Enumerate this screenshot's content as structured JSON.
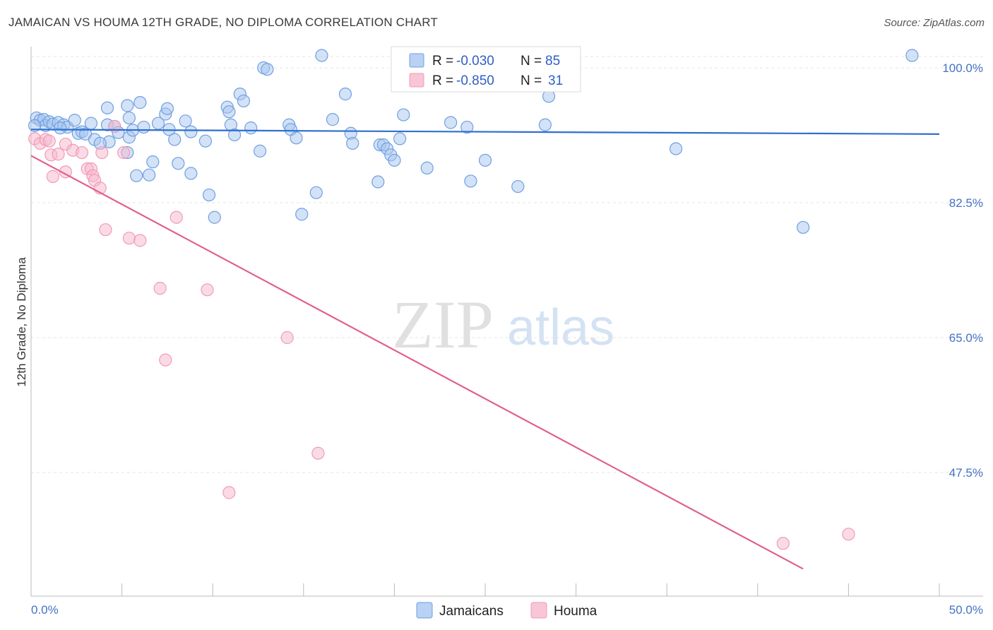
{
  "header": {
    "title": "JAMAICAN VS HOUMA 12TH GRADE, NO DIPLOMA CORRELATION CHART",
    "source": "Source: ZipAtlas.com"
  },
  "watermark": {
    "zip": "ZIP",
    "atlas": "atlas"
  },
  "legend": {
    "r_label": "R =",
    "n_label": "N =",
    "rows": [
      {
        "series": "Jamaicans",
        "r": "-0.030",
        "n": "85",
        "color": "#a8c6ef"
      },
      {
        "series": "Houma",
        "r": "-0.850",
        "n": "31",
        "color": "#f6b8cb"
      }
    ]
  },
  "bottom_legend": [
    "Jamaicans",
    "Houma"
  ],
  "chart_data": {
    "type": "scatter",
    "title": "JAMAICAN VS HOUMA 12TH GRADE, NO DIPLOMA CORRELATION CHART",
    "xlabel": "",
    "ylabel": "12th Grade, No Diploma",
    "xlim": [
      0,
      50
    ],
    "ylim": [
      35,
      102
    ],
    "x_tick_labels": [
      "0.0%",
      "50.0%"
    ],
    "y_ticks": [
      100,
      82.5,
      65,
      47.5
    ],
    "y_tick_labels": [
      "100.0%",
      "82.5%",
      "65.0%",
      "47.5%"
    ],
    "grid": true,
    "legend_position": "top-center",
    "series": [
      {
        "name": "Jamaicans",
        "color": "#6fa0e0",
        "trend": {
          "x": [
            0,
            50
          ],
          "y": [
            92.0,
            91.4
          ]
        },
        "points": [
          [
            0.3,
            93.5
          ],
          [
            0.5,
            93.2
          ],
          [
            0.7,
            93.3
          ],
          [
            0.8,
            92.5
          ],
          [
            1.0,
            93.0
          ],
          [
            1.2,
            92.7
          ],
          [
            1.5,
            92.9
          ],
          [
            1.8,
            92.6
          ],
          [
            2.0,
            92.3
          ],
          [
            2.4,
            93.2
          ],
          [
            2.6,
            91.5
          ],
          [
            2.8,
            91.7
          ],
          [
            3.0,
            91.4
          ],
          [
            3.3,
            92.8
          ],
          [
            3.5,
            90.7
          ],
          [
            4.2,
            94.8
          ],
          [
            4.2,
            92.6
          ],
          [
            4.3,
            90.4
          ],
          [
            4.6,
            92.4
          ],
          [
            4.8,
            91.6
          ],
          [
            5.3,
            89.0
          ],
          [
            5.4,
            91.0
          ],
          [
            5.6,
            91.9
          ],
          [
            5.3,
            95.1
          ],
          [
            5.4,
            93.5
          ],
          [
            5.8,
            86.0
          ],
          [
            6.0,
            95.5
          ],
          [
            6.2,
            92.3
          ],
          [
            6.5,
            86.1
          ],
          [
            6.7,
            87.8
          ],
          [
            7.0,
            92.8
          ],
          [
            7.4,
            94.0
          ],
          [
            7.5,
            94.7
          ],
          [
            7.6,
            92.0
          ],
          [
            7.9,
            90.7
          ],
          [
            8.1,
            87.6
          ],
          [
            8.5,
            93.1
          ],
          [
            8.8,
            91.7
          ],
          [
            8.8,
            86.3
          ],
          [
            9.6,
            90.5
          ],
          [
            9.8,
            83.5
          ],
          [
            10.1,
            80.6
          ],
          [
            10.8,
            94.9
          ],
          [
            10.9,
            94.3
          ],
          [
            11.0,
            92.6
          ],
          [
            11.2,
            91.3
          ],
          [
            11.5,
            96.6
          ],
          [
            11.7,
            95.7
          ],
          [
            12.1,
            92.2
          ],
          [
            12.6,
            89.2
          ],
          [
            12.8,
            100.0
          ],
          [
            13.0,
            99.8
          ],
          [
            14.2,
            92.6
          ],
          [
            14.3,
            92.0
          ],
          [
            14.6,
            90.9
          ],
          [
            14.9,
            81.0
          ],
          [
            15.7,
            83.8
          ],
          [
            16.0,
            101.6
          ],
          [
            16.6,
            93.3
          ],
          [
            17.3,
            96.6
          ],
          [
            17.6,
            91.5
          ],
          [
            17.7,
            90.2
          ],
          [
            19.1,
            85.2
          ],
          [
            19.2,
            90.0
          ],
          [
            19.4,
            90.0
          ],
          [
            19.6,
            89.5
          ],
          [
            19.8,
            88.7
          ],
          [
            20.0,
            88.0
          ],
          [
            20.3,
            90.8
          ],
          [
            20.5,
            93.9
          ],
          [
            21.8,
            87.0
          ],
          [
            23.1,
            92.9
          ],
          [
            24.0,
            92.3
          ],
          [
            25.0,
            88.0
          ],
          [
            26.8,
            84.6
          ],
          [
            27.0,
            101.6
          ],
          [
            28.3,
            92.6
          ],
          [
            28.5,
            96.3
          ],
          [
            35.5,
            89.5
          ],
          [
            42.5,
            79.3
          ],
          [
            48.5,
            101.6
          ],
          [
            0.2,
            92.5
          ],
          [
            1.6,
            92.2
          ],
          [
            3.8,
            90.2
          ],
          [
            24.2,
            85.3
          ]
        ]
      },
      {
        "name": "Houma",
        "color": "#f29ab6",
        "trend": {
          "x": [
            0,
            42.5
          ],
          "y": [
            88.6,
            35.0
          ]
        },
        "points": [
          [
            0.2,
            90.8
          ],
          [
            0.5,
            90.2
          ],
          [
            0.8,
            90.7
          ],
          [
            1.0,
            90.5
          ],
          [
            1.1,
            88.7
          ],
          [
            1.2,
            85.9
          ],
          [
            1.5,
            88.8
          ],
          [
            1.9,
            90.1
          ],
          [
            1.9,
            86.5
          ],
          [
            2.3,
            89.3
          ],
          [
            2.8,
            89.0
          ],
          [
            3.1,
            86.9
          ],
          [
            3.3,
            86.9
          ],
          [
            3.4,
            86.0
          ],
          [
            3.5,
            85.4
          ],
          [
            3.8,
            84.4
          ],
          [
            3.9,
            89.0
          ],
          [
            4.1,
            79.0
          ],
          [
            4.6,
            92.4
          ],
          [
            5.1,
            89.0
          ],
          [
            5.4,
            77.9
          ],
          [
            6.0,
            77.6
          ],
          [
            7.1,
            71.4
          ],
          [
            7.4,
            62.1
          ],
          [
            8.0,
            80.6
          ],
          [
            9.7,
            71.2
          ],
          [
            10.9,
            44.9
          ],
          [
            14.1,
            65.0
          ],
          [
            15.8,
            50.0
          ],
          [
            41.4,
            38.3
          ],
          [
            45.0,
            39.5
          ]
        ]
      }
    ]
  }
}
